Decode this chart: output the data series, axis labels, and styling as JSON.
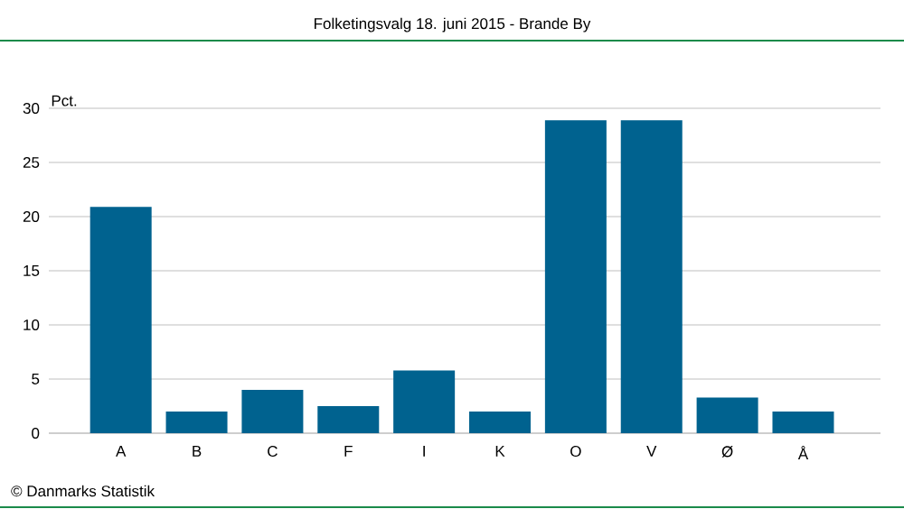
{
  "chart_data": {
    "type": "bar",
    "title": "Folketingsvalg 18. juni 2015 - Brande By",
    "ylabel": "Pct.",
    "categories": [
      "A",
      "B",
      "C",
      "F",
      "I",
      "K",
      "O",
      "V",
      "Ø",
      "Å"
    ],
    "values": [
      20.9,
      2.0,
      4.0,
      2.5,
      5.8,
      2.0,
      28.9,
      28.9,
      3.3,
      2.0
    ],
    "color": "#00628f",
    "ylim": [
      0,
      30
    ],
    "yticks": [
      0,
      5,
      10,
      15,
      20,
      25,
      30
    ],
    "grid": "y",
    "annotations": [
      "© Danmarks Statistik"
    ]
  }
}
